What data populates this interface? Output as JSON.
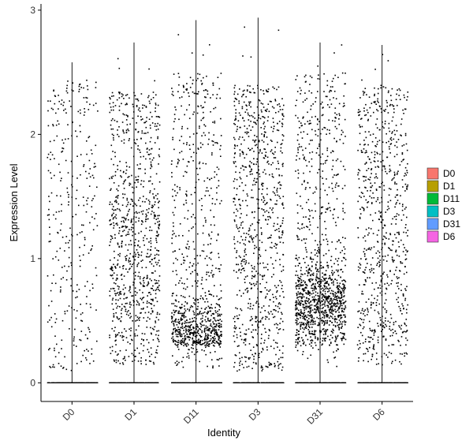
{
  "chart_data": {
    "type": "scatter",
    "subtype": "violin-jitter",
    "title": "",
    "xlabel": "Identity",
    "ylabel": "Expression Level",
    "ylim": [
      -0.15,
      3.05
    ],
    "yticks": [
      0,
      1,
      2,
      3
    ],
    "grid": false,
    "legend_position": "right",
    "categories": [
      "D0",
      "D1",
      "D11",
      "D3",
      "D31",
      "D6"
    ],
    "series": [
      {
        "name": "D0",
        "color": "#F8766D",
        "max": 2.58,
        "n_zero": 300,
        "n_points": 320,
        "distribution": "uniform",
        "y_range": [
          0.1,
          2.45
        ]
      },
      {
        "name": "D1",
        "color": "#B79F00",
        "max": 2.74,
        "n_zero": 300,
        "n_points": 900,
        "distribution": "uniform-mid-heavy",
        "y_range": [
          0.15,
          2.35
        ]
      },
      {
        "name": "D11",
        "color": "#00BA38",
        "max": 2.92,
        "n_zero": 300,
        "n_points": 950,
        "distribution": "low-concentrated",
        "y_range": [
          0.12,
          2.5
        ]
      },
      {
        "name": "D3",
        "color": "#00BFC4",
        "max": 2.94,
        "n_zero": 300,
        "n_points": 850,
        "distribution": "uniform",
        "y_range": [
          0.1,
          2.4
        ]
      },
      {
        "name": "D31",
        "color": "#619CFF",
        "max": 2.74,
        "n_zero": 300,
        "n_points": 1300,
        "distribution": "mid-concentrated",
        "y_range": [
          0.3,
          2.5
        ]
      },
      {
        "name": "D6",
        "color": "#F564E3",
        "max": 2.72,
        "n_zero": 300,
        "n_points": 750,
        "distribution": "uniform",
        "y_range": [
          0.15,
          2.4
        ]
      }
    ]
  }
}
